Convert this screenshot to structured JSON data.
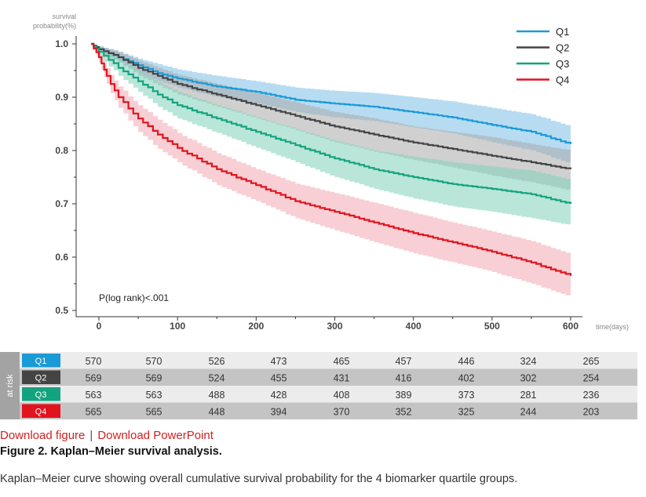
{
  "chart_data": {
    "type": "line",
    "subtype": "kaplan-meier",
    "ylabel": "survival probability(%)",
    "xlabel": "time(days)",
    "xlim": [
      -20,
      620
    ],
    "ylim": [
      0.5,
      1.0
    ],
    "xticks": [
      0,
      100,
      200,
      300,
      400,
      500,
      600
    ],
    "yticks": [
      0.5,
      0.6,
      0.7,
      0.8,
      0.9,
      1.0
    ],
    "annotation": "P(log rank)<.001",
    "legend_position": "top-right",
    "series": [
      {
        "name": "Q1",
        "color": "#1a9ad6",
        "band_color": "#7cc0e6",
        "x": [
          -10,
          0,
          25,
          50,
          75,
          100,
          150,
          200,
          250,
          300,
          350,
          400,
          450,
          500,
          550,
          600
        ],
        "y": [
          1.0,
          0.99,
          0.975,
          0.96,
          0.945,
          0.935,
          0.92,
          0.91,
          0.895,
          0.888,
          0.882,
          0.872,
          0.862,
          0.848,
          0.835,
          0.812
        ],
        "lower": [
          1.0,
          0.985,
          0.965,
          0.945,
          0.93,
          0.918,
          0.9,
          0.888,
          0.872,
          0.862,
          0.855,
          0.843,
          0.832,
          0.815,
          0.8,
          0.775
        ],
        "upper": [
          1.0,
          0.995,
          0.985,
          0.972,
          0.962,
          0.952,
          0.94,
          0.93,
          0.918,
          0.912,
          0.908,
          0.9,
          0.892,
          0.88,
          0.868,
          0.845
        ]
      },
      {
        "name": "Q2",
        "color": "#444444",
        "band_color": "#a9a9a9",
        "x": [
          -10,
          0,
          25,
          50,
          75,
          100,
          150,
          200,
          250,
          300,
          350,
          400,
          450,
          500,
          550,
          600
        ],
        "y": [
          1.0,
          0.99,
          0.975,
          0.955,
          0.94,
          0.925,
          0.905,
          0.885,
          0.865,
          0.845,
          0.83,
          0.815,
          0.803,
          0.79,
          0.778,
          0.765
        ],
        "lower": [
          1.0,
          0.983,
          0.965,
          0.94,
          0.922,
          0.905,
          0.882,
          0.86,
          0.838,
          0.815,
          0.798,
          0.782,
          0.768,
          0.753,
          0.74,
          0.725
        ],
        "upper": [
          1.0,
          0.995,
          0.985,
          0.968,
          0.955,
          0.942,
          0.925,
          0.908,
          0.89,
          0.872,
          0.86,
          0.845,
          0.835,
          0.825,
          0.812,
          0.8
        ]
      },
      {
        "name": "Q3",
        "color": "#14a37f",
        "band_color": "#7fd1b9",
        "x": [
          -10,
          0,
          25,
          50,
          75,
          100,
          150,
          200,
          250,
          300,
          350,
          400,
          450,
          500,
          550,
          600
        ],
        "y": [
          1.0,
          0.985,
          0.955,
          0.93,
          0.905,
          0.885,
          0.86,
          0.835,
          0.81,
          0.785,
          0.765,
          0.75,
          0.737,
          0.728,
          0.718,
          0.7
        ],
        "lower": [
          1.0,
          0.975,
          0.94,
          0.91,
          0.882,
          0.86,
          0.833,
          0.805,
          0.778,
          0.75,
          0.728,
          0.71,
          0.695,
          0.685,
          0.673,
          0.66
        ],
        "upper": [
          1.0,
          0.995,
          0.97,
          0.948,
          0.928,
          0.91,
          0.885,
          0.862,
          0.84,
          0.818,
          0.8,
          0.788,
          0.778,
          0.77,
          0.762,
          0.745
        ]
      },
      {
        "name": "Q4",
        "color": "#e0141e",
        "band_color": "#f0a8b0",
        "x": [
          -10,
          0,
          10,
          25,
          50,
          75,
          100,
          150,
          200,
          250,
          300,
          350,
          400,
          450,
          500,
          550,
          600
        ],
        "y": [
          1.0,
          0.975,
          0.94,
          0.9,
          0.86,
          0.83,
          0.805,
          0.765,
          0.735,
          0.705,
          0.685,
          0.665,
          0.645,
          0.628,
          0.61,
          0.59,
          0.565
        ],
        "lower": [
          1.0,
          0.965,
          0.925,
          0.88,
          0.835,
          0.803,
          0.778,
          0.735,
          0.705,
          0.673,
          0.65,
          0.628,
          0.607,
          0.59,
          0.572,
          0.55,
          0.525
        ],
        "upper": [
          1.0,
          0.985,
          0.955,
          0.92,
          0.885,
          0.858,
          0.833,
          0.795,
          0.765,
          0.738,
          0.72,
          0.702,
          0.683,
          0.665,
          0.648,
          0.63,
          0.605
        ]
      }
    ],
    "risk_table": {
      "title": "at risk",
      "groups": [
        {
          "name": "Q1",
          "color": "#1a9ad6",
          "values": [
            "570",
            "570",
            "526",
            "473",
            "465",
            "457",
            "446",
            "324",
            "265"
          ]
        },
        {
          "name": "Q2",
          "color": "#444444",
          "values": [
            "569",
            "569",
            "524",
            "455",
            "431",
            "416",
            "402",
            "302",
            "254"
          ]
        },
        {
          "name": "Q3",
          "color": "#14a37f",
          "values": [
            "563",
            "563",
            "488",
            "428",
            "408",
            "389",
            "373",
            "281",
            "236"
          ]
        },
        {
          "name": "Q4",
          "color": "#e0141e",
          "values": [
            "565",
            "565",
            "448",
            "394",
            "370",
            "352",
            "325",
            "244",
            "203"
          ]
        }
      ]
    }
  },
  "footer": {
    "download_figure": "Download figure",
    "separator": "|",
    "download_powerpoint": "Download PowerPoint",
    "figure_title": "Figure 2. Kaplan–Meier survival analysis.",
    "caption": "Kaplan–Meier curve showing overall cumulative survival probability for the 4 biomarker quartile groups."
  }
}
